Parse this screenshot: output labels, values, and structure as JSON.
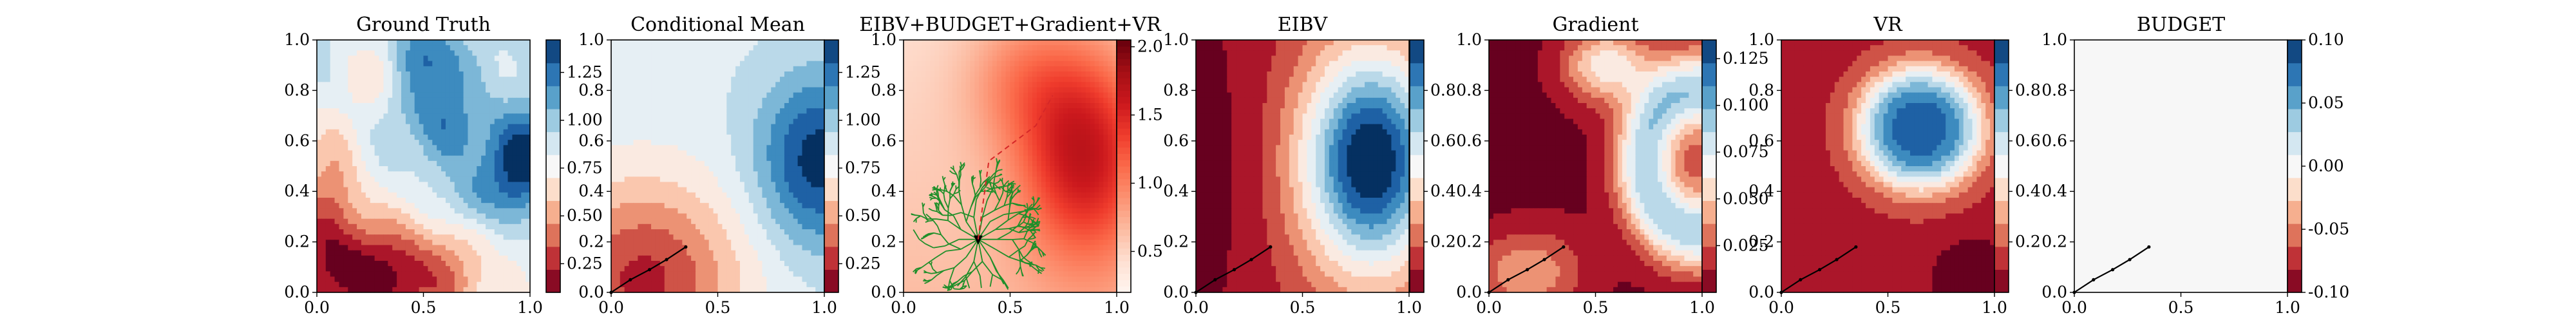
{
  "chart_data": [
    {
      "type": "heatmap",
      "title": "Ground Truth",
      "field": "ground_truth",
      "xticks": [
        "0.0",
        "0.5",
        "1.0"
      ],
      "yticks": [
        "0.0",
        "0.2",
        "0.4",
        "0.6",
        "0.8",
        "1.0"
      ],
      "xlim": [
        0,
        1
      ],
      "ylim": [
        0,
        1
      ],
      "colormap": "RdBu",
      "colorbar": {
        "range": [
          0.1,
          1.42
        ],
        "ticks": [
          "0.25",
          "0.50",
          "0.75",
          "1.00",
          "1.25"
        ]
      }
    },
    {
      "type": "heatmap",
      "title": "Conditional Mean",
      "field": "conditional_mean",
      "xticks": [
        "0.0",
        "0.5",
        "1.0"
      ],
      "yticks": [
        "0.0",
        "0.2",
        "0.4",
        "0.6",
        "0.8",
        "1.0"
      ],
      "xlim": [
        0,
        1
      ],
      "ylim": [
        0,
        1
      ],
      "colormap": "RdBu",
      "colorbar": {
        "range": [
          0.1,
          1.42
        ],
        "ticks": [
          "0.25",
          "0.50",
          "0.75",
          "1.00",
          "1.25"
        ]
      },
      "path": [
        [
          0.0,
          0.0
        ],
        [
          0.09,
          0.05
        ],
        [
          0.18,
          0.09
        ],
        [
          0.26,
          0.13
        ],
        [
          0.35,
          0.18
        ]
      ]
    },
    {
      "type": "heatmap",
      "title": "EIBV+BUDGET+Gradient+VR",
      "field": "cost_total",
      "xticks": [
        "0.0",
        "0.5",
        "1.0"
      ],
      "yticks": [
        "0.0",
        "0.2",
        "0.4",
        "0.6",
        "0.8",
        "1.0"
      ],
      "xlim": [
        0,
        1
      ],
      "ylim": [
        0,
        1
      ],
      "colormap": "Reds",
      "colorbar": {
        "range": [
          0.2,
          2.05
        ],
        "ticks": [
          "0.5",
          "1.0",
          "1.5",
          "2.0"
        ]
      },
      "rrt_root": [
        0.35,
        0.21
      ],
      "candidate_path": [
        [
          0.35,
          0.21
        ],
        [
          0.4,
          0.52
        ],
        [
          0.62,
          0.66
        ],
        [
          0.7,
          0.78
        ]
      ]
    },
    {
      "type": "heatmap",
      "title": "EIBV",
      "field": "eibv",
      "xticks": [
        "0.0",
        "0.5",
        "1.0"
      ],
      "yticks": [
        "0.0",
        "0.2",
        "0.4",
        "0.6",
        "0.8",
        "1.0"
      ],
      "xlim": [
        0,
        1
      ],
      "ylim": [
        0,
        1
      ],
      "colormap": "RdBu",
      "colorbar": {
        "range": [
          0,
          1
        ],
        "ticks": [
          "0.2",
          "0.4",
          "0.6",
          "0.8"
        ]
      },
      "path": [
        [
          0.0,
          0.0
        ],
        [
          0.09,
          0.05
        ],
        [
          0.18,
          0.09
        ],
        [
          0.26,
          0.13
        ],
        [
          0.35,
          0.18
        ]
      ]
    },
    {
      "type": "heatmap",
      "title": "Gradient",
      "field": "gradient",
      "xticks": [
        "0.0",
        "0.5",
        "1.0"
      ],
      "yticks": [
        "0.0",
        "0.2",
        "0.4",
        "0.6",
        "0.8",
        "1.0"
      ],
      "xlim": [
        0,
        1
      ],
      "ylim": [
        0,
        1
      ],
      "colormap": "RdBu",
      "colorbar": {
        "range": [
          0,
          0.135
        ],
        "ticks": [
          "0.025",
          "0.050",
          "0.075",
          "0.100",
          "0.125"
        ]
      },
      "path": [
        [
          0.0,
          0.0
        ],
        [
          0.09,
          0.05
        ],
        [
          0.18,
          0.09
        ],
        [
          0.26,
          0.13
        ],
        [
          0.35,
          0.18
        ]
      ]
    },
    {
      "type": "heatmap",
      "title": "VR",
      "field": "vr",
      "xticks": [
        "0.0",
        "0.5",
        "1.0"
      ],
      "yticks": [
        "0.0",
        "0.2",
        "0.4",
        "0.6",
        "0.8",
        "1.0"
      ],
      "xlim": [
        0,
        1
      ],
      "ylim": [
        0,
        1
      ],
      "colormap": "RdBu",
      "colorbar": {
        "range": [
          0,
          1
        ],
        "ticks": [
          "0.2",
          "0.4",
          "0.6",
          "0.8"
        ]
      },
      "path": [
        [
          0.0,
          0.0
        ],
        [
          0.09,
          0.05
        ],
        [
          0.18,
          0.09
        ],
        [
          0.26,
          0.13
        ],
        [
          0.35,
          0.18
        ]
      ]
    },
    {
      "type": "heatmap",
      "title": "BUDGET",
      "field": "budget",
      "xticks": [
        "0.0",
        "0.5",
        "1.0"
      ],
      "yticks": [
        "0.0",
        "0.2",
        "0.4",
        "0.6",
        "0.8",
        "1.0"
      ],
      "xlim": [
        0,
        1
      ],
      "ylim": [
        0,
        1
      ],
      "colormap": "RdBu",
      "colorbar": {
        "range": [
          -0.1,
          0.1
        ],
        "ticks": [
          "-0.10",
          "-0.05",
          "0.00",
          "0.05",
          "0.10"
        ]
      },
      "constant_value": 0.0,
      "path": [
        [
          0.0,
          0.0
        ],
        [
          0.09,
          0.05
        ],
        [
          0.18,
          0.09
        ],
        [
          0.26,
          0.13
        ],
        [
          0.35,
          0.18
        ]
      ]
    }
  ]
}
